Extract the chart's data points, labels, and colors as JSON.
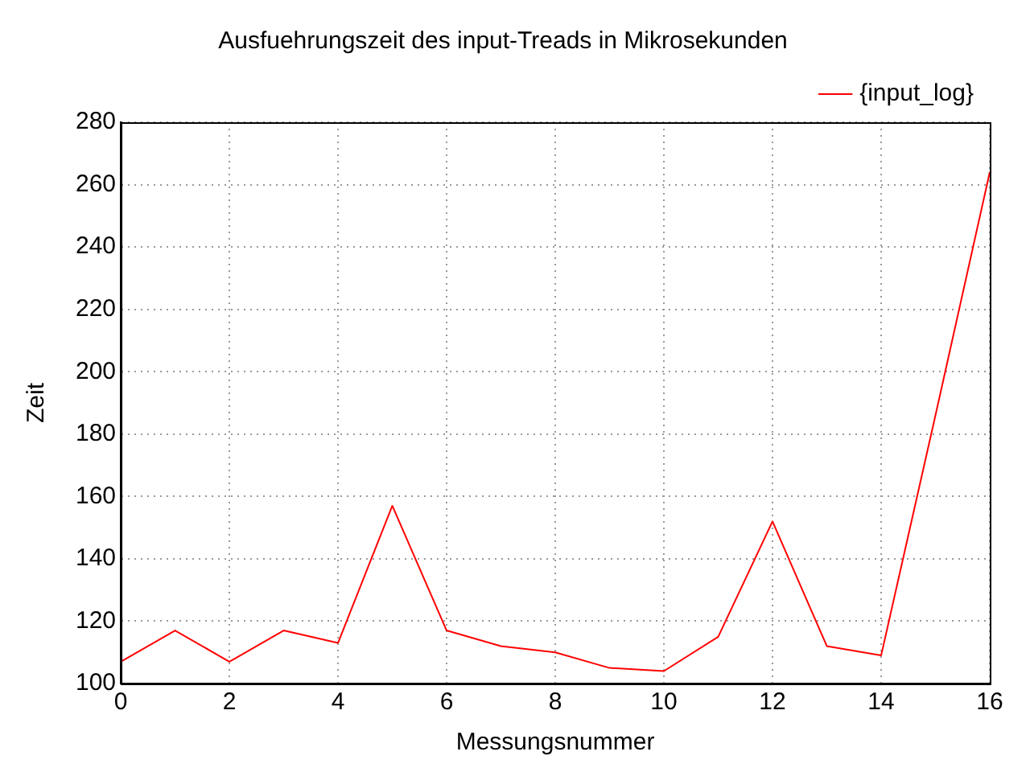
{
  "chart_data": {
    "type": "line",
    "title": "Ausfuehrungszeit des input-Treads in Mikrosekunden",
    "xlabel": "Messungsnummer",
    "ylabel": "Zeit",
    "x": [
      0,
      1,
      2,
      3,
      4,
      5,
      6,
      7,
      8,
      9,
      10,
      11,
      12,
      13,
      14,
      15,
      16
    ],
    "series": [
      {
        "name": "{input_log}",
        "color": "#ff0000",
        "values": [
          107,
          117,
          107,
          117,
          113,
          157,
          117,
          112,
          110,
          105,
          104,
          115,
          152,
          112,
          109,
          186,
          264
        ]
      }
    ],
    "xlim": [
      0,
      16
    ],
    "xticks": [
      0,
      2,
      4,
      6,
      8,
      10,
      12,
      14,
      16
    ],
    "ylim": [
      100,
      280
    ],
    "yticks": [
      100,
      120,
      140,
      160,
      180,
      200,
      220,
      240,
      260,
      280
    ],
    "grid": true,
    "legend": "top right",
    "marker": "none",
    "line_style": "solid"
  }
}
